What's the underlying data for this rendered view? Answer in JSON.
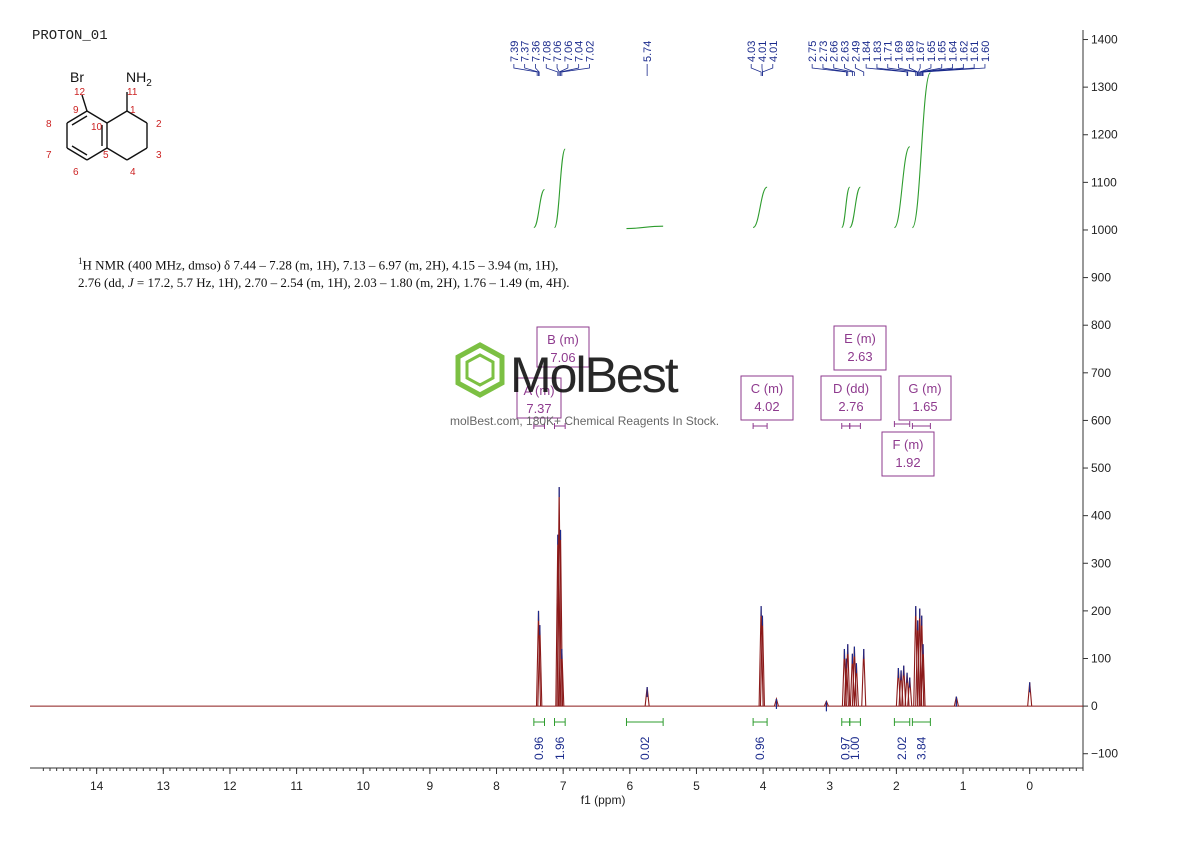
{
  "title": "PROTON_01",
  "nmr_description": {
    "line1": "H NMR (400 MHz, dmso) δ 7.44 – 7.28 (m, 1H), 7.13 – 6.97 (m, 2H), 4.15 – 3.94 (m, 1H),",
    "line2_pre": "2.76 (dd, ",
    "line2_j": "J",
    "line2_post": " = 17.2, 5.7 Hz, 1H), 2.70 – 2.54 (m, 1H), 2.03 – 1.80 (m, 2H), 1.76 – 1.49 (m, 4H).",
    "superscript": "1"
  },
  "watermark": {
    "brand": "MolBest",
    "tagline": "molBest.com, 180K+ Chemical Reagents In Stock."
  },
  "molecule": {
    "substituent_br": "Br",
    "substituent_nh2_main": "NH",
    "substituent_nh2_sub": "2",
    "atom_numbers": [
      "12",
      "11",
      "9",
      "1",
      "8",
      "10",
      "2",
      "7",
      "5",
      "3",
      "6",
      "4"
    ]
  },
  "colors": {
    "spectrum": "#8b1a1a",
    "peak_labels": "#1a2a8c",
    "integral": "#2e9c2e",
    "multiplet_box": "#8e3a8e",
    "axis": "#333333",
    "atom_numbers": "#cc2222"
  },
  "chart_data": {
    "type": "line",
    "xlabel": "f1 (ppm)",
    "x_reversed": true,
    "xlim": [
      15,
      -0.8
    ],
    "ylim": [
      -130,
      1420
    ],
    "x_ticks": [
      14,
      13,
      12,
      11,
      10,
      9,
      8,
      7,
      6,
      5,
      4,
      3,
      2,
      1,
      0
    ],
    "y_ticks": [
      1400,
      1300,
      1200,
      1100,
      1000,
      900,
      800,
      700,
      600,
      500,
      400,
      300,
      200,
      100,
      0,
      -100
    ],
    "peaks": [
      {
        "ppm": 7.37,
        "height": 200
      },
      {
        "ppm": 7.35,
        "height": 170
      },
      {
        "ppm": 7.08,
        "height": 360
      },
      {
        "ppm": 7.06,
        "height": 460
      },
      {
        "ppm": 7.04,
        "height": 370
      },
      {
        "ppm": 7.02,
        "height": 120
      },
      {
        "ppm": 5.74,
        "height": 40
      },
      {
        "ppm": 4.03,
        "height": 210
      },
      {
        "ppm": 4.01,
        "height": 190
      },
      {
        "ppm": 3.8,
        "height": 15
      },
      {
        "ppm": 3.05,
        "height": 10
      },
      {
        "ppm": 2.78,
        "height": 120
      },
      {
        "ppm": 2.75,
        "height": 100
      },
      {
        "ppm": 2.73,
        "height": 130
      },
      {
        "ppm": 2.66,
        "height": 110
      },
      {
        "ppm": 2.63,
        "height": 125
      },
      {
        "ppm": 2.6,
        "height": 90
      },
      {
        "ppm": 2.49,
        "height": 120
      },
      {
        "ppm": 1.97,
        "height": 80
      },
      {
        "ppm": 1.93,
        "height": 75
      },
      {
        "ppm": 1.89,
        "height": 85
      },
      {
        "ppm": 1.84,
        "height": 70
      },
      {
        "ppm": 1.8,
        "height": 60
      },
      {
        "ppm": 1.71,
        "height": 210
      },
      {
        "ppm": 1.68,
        "height": 180
      },
      {
        "ppm": 1.65,
        "height": 205
      },
      {
        "ppm": 1.62,
        "height": 190
      },
      {
        "ppm": 1.6,
        "height": 130
      },
      {
        "ppm": 1.1,
        "height": 20
      },
      {
        "ppm": 0.0,
        "height": 50
      }
    ],
    "peak_label_groups": [
      {
        "labels": [
          "7.39",
          "7.37",
          "7.36",
          "7.08",
          "7.06",
          "7.06",
          "7.04",
          "7.02"
        ],
        "ppm": [
          7.39,
          7.37,
          7.36,
          7.08,
          7.06,
          7.06,
          7.04,
          7.02
        ]
      },
      {
        "labels": [
          "5.74"
        ],
        "ppm": [
          5.74
        ]
      },
      {
        "labels": [
          "4.03",
          "4.01",
          "4.01"
        ],
        "ppm": [
          4.03,
          4.01,
          4.01
        ]
      },
      {
        "labels": [
          "2.75",
          "2.73",
          "2.66",
          "2.63",
          "2.49",
          "1.84",
          "1.83",
          "1.71",
          "1.69",
          "1.68",
          "1.67",
          "1.65",
          "1.65",
          "1.64",
          "1.62",
          "1.61",
          "1.60"
        ],
        "ppm": [
          2.75,
          2.73,
          2.66,
          2.63,
          2.49,
          1.84,
          1.83,
          1.71,
          1.69,
          1.68,
          1.67,
          1.65,
          1.65,
          1.64,
          1.62,
          1.61,
          1.6
        ]
      }
    ],
    "integrals": [
      {
        "from": 7.44,
        "to": 7.28,
        "value": "0.96",
        "y_start": 1005,
        "y_end": 1085
      },
      {
        "from": 7.13,
        "to": 6.97,
        "value": "1.96",
        "y_start": 1005,
        "y_end": 1170
      },
      {
        "from": 6.05,
        "to": 5.5,
        "value": "0.02",
        "y_start": 1003,
        "y_end": 1008
      },
      {
        "from": 4.15,
        "to": 3.94,
        "value": "0.96",
        "y_start": 1005,
        "y_end": 1090
      },
      {
        "from": 2.82,
        "to": 2.7,
        "value": "0.97",
        "y_start": 1005,
        "y_end": 1090
      },
      {
        "from": 2.7,
        "to": 2.54,
        "value": "1.00",
        "y_start": 1005,
        "y_end": 1090
      },
      {
        "from": 2.03,
        "to": 1.8,
        "value": "2.02",
        "y_start": 1005,
        "y_end": 1175
      },
      {
        "from": 1.76,
        "to": 1.49,
        "value": "3.84",
        "y_start": 1005,
        "y_end": 1330
      }
    ],
    "multiplets": [
      {
        "id": "A",
        "mult": "A (m)",
        "shift": "7.37",
        "range": [
          7.44,
          7.28
        ]
      },
      {
        "id": "B",
        "mult": "B (m)",
        "shift": "7.06",
        "range": [
          7.13,
          6.97
        ]
      },
      {
        "id": "C",
        "mult": "C (m)",
        "shift": "4.02",
        "range": [
          4.15,
          3.94
        ]
      },
      {
        "id": "D",
        "mult": "D (dd)",
        "shift": "2.76",
        "range": [
          2.82,
          2.7
        ]
      },
      {
        "id": "E",
        "mult": "E (m)",
        "shift": "2.63",
        "range": [
          2.7,
          2.54
        ]
      },
      {
        "id": "F",
        "mult": "F (m)",
        "shift": "1.92",
        "range": [
          2.03,
          1.8
        ]
      },
      {
        "id": "G",
        "mult": "G (m)",
        "shift": "1.65",
        "range": [
          1.76,
          1.49
        ]
      }
    ]
  }
}
